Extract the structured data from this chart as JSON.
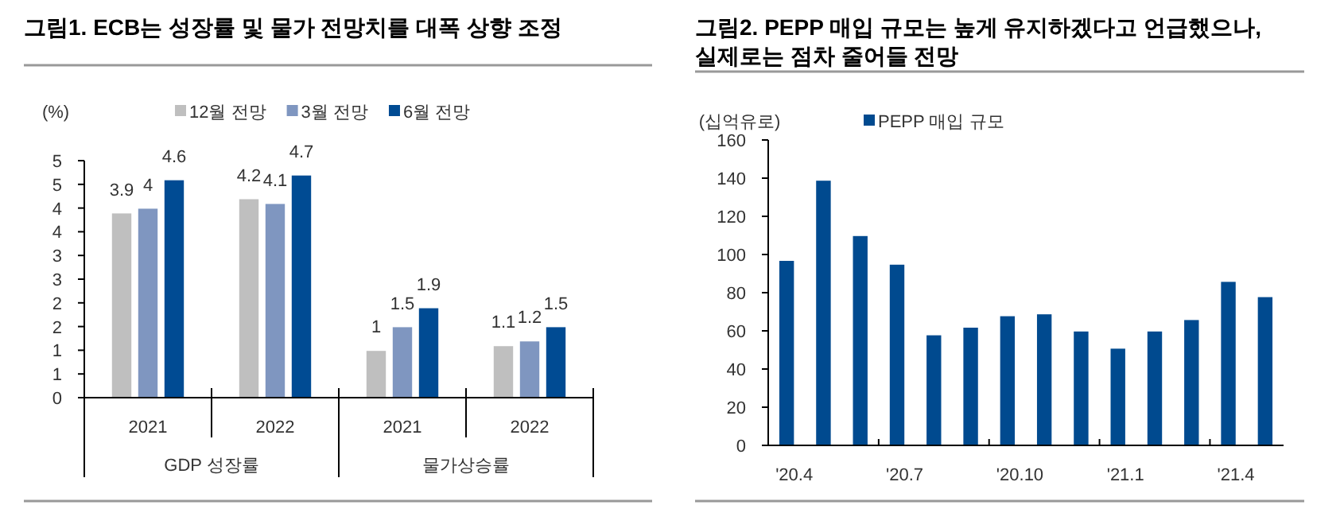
{
  "chart_data": [
    {
      "type": "bar",
      "title": "그림1. ECB는 성장률 및 물가 전망치를 대폭 상향 조정",
      "ylabel": "(%)",
      "categories": [
        "2021",
        "2022",
        "2021",
        "2022"
      ],
      "series": [
        {
          "name": "12월 전망",
          "color": "#bfbfbf",
          "values": [
            3.9,
            4.2,
            1,
            1.1
          ]
        },
        {
          "name": "3월 전망",
          "color": "#7f96c0",
          "values": [
            4,
            4.1,
            1.5,
            1.2
          ]
        },
        {
          "name": "6월 전망",
          "color": "#004b93",
          "values": [
            4.6,
            4.7,
            1.9,
            1.5
          ]
        }
      ],
      "ylim": [
        0,
        5
      ],
      "yticks": [
        0,
        {
          "value": 0.5,
          "label": "1"
        },
        1,
        {
          "value": 1.5,
          "label": "2"
        },
        2,
        {
          "value": 2.5,
          "label": "3"
        },
        3,
        {
          "value": 3.5,
          "label": "4"
        },
        4,
        {
          "value": 4.5,
          "label": "5"
        },
        5
      ],
      "data_labels": true,
      "legend": "top",
      "annotations": [
        "GDP 성장률",
        "물가상승률"
      ]
    },
    {
      "type": "bar",
      "title": "그림2. PEPP 매입 규모는 높게 유지하겠다고 언급했으나,\n실제로는 점차 줄어들 전망",
      "ylabel": "(십억유로)",
      "categories": [
        "'20.4",
        null,
        null,
        "'20.7",
        null,
        null,
        "'20.10",
        null,
        null,
        "'21.1",
        null,
        null,
        "'21.4",
        null
      ],
      "series": [
        {
          "name": "PEPP 매입 규모",
          "color": "#004a8f",
          "values": [
            97,
            139,
            110,
            95,
            58,
            62,
            68,
            69,
            60,
            51,
            60,
            66,
            86,
            78
          ]
        }
      ],
      "ylim": [
        0,
        160
      ],
      "yticks": [
        0,
        20,
        40,
        60,
        80,
        100,
        120,
        140,
        160
      ],
      "legend": "top left"
    }
  ]
}
